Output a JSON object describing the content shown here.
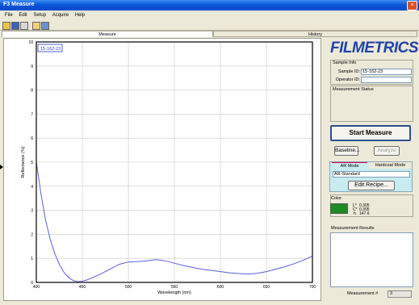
{
  "window": {
    "title": "F3 Measure",
    "close_glyph": "×"
  },
  "menu": [
    "File",
    "Edit",
    "Setup",
    "Acquire",
    "Help"
  ],
  "toolbar": [
    "open-icon",
    "save-icon",
    "print-icon",
    "copy-icon",
    "settings-icon"
  ],
  "tabs": {
    "measure": "Measure",
    "history": "History"
  },
  "chart_data": {
    "type": "line",
    "legend_label": "15-162-23",
    "xlabel": "Wavelength (nm)",
    "ylabel": "Reflectance (%)",
    "xlim": [
      400,
      700
    ],
    "ylim": [
      0,
      10
    ],
    "xticks": [
      400,
      450,
      500,
      550,
      600,
      650,
      700
    ],
    "yticks": [
      0,
      1,
      2,
      3,
      4,
      5,
      6,
      7,
      8,
      9,
      10
    ],
    "grid": true,
    "line_color": "#5b5fe0",
    "series": [
      {
        "x": [
          400,
          405,
          410,
          415,
          420,
          425,
          430,
          435,
          440,
          445,
          450,
          455,
          460,
          470,
          480,
          490,
          500,
          510,
          520,
          530,
          540,
          550,
          560,
          570,
          580,
          590,
          600,
          610,
          620,
          630,
          640,
          650,
          660,
          670,
          680,
          690,
          700
        ],
        "y": [
          5.0,
          3.7,
          2.6,
          1.8,
          1.2,
          0.75,
          0.42,
          0.2,
          0.08,
          0.03,
          0.05,
          0.1,
          0.18,
          0.35,
          0.55,
          0.75,
          0.85,
          0.87,
          0.9,
          0.95,
          0.9,
          0.8,
          0.7,
          0.62,
          0.55,
          0.5,
          0.45,
          0.4,
          0.37,
          0.35,
          0.38,
          0.45,
          0.55,
          0.65,
          0.78,
          0.92,
          1.1
        ]
      }
    ]
  },
  "right": {
    "logo": "FILMETRICS",
    "sample_info_label": "Sample Info",
    "sample_id_label": "Sample ID:",
    "sample_id_value": "15-162-23",
    "operator_id_label": "Operator ID:",
    "operator_id_value": "",
    "measurement_status_label": "Measurement Status",
    "start_button": "Start Measure",
    "baseline_button": "Baseline...",
    "analyze_button": "Analyze",
    "ar_mode_tab": "AR Mode",
    "hardcoat_mode_tab": "Hardcoat Mode",
    "recipe_value": "AR-Standard",
    "edit_recipe_button": "Edit Recipe...",
    "color_label": "Color",
    "color_swatch": "#1c8c24",
    "l_label": "L*",
    "l_value": "0.305",
    "c_label": "C*",
    "c_value": "0.305",
    "h_label": "h",
    "h_value": "147.6",
    "results_label": "Measurement Results",
    "measurement_num_label": "Measurement #",
    "measurement_num_value": "3"
  }
}
